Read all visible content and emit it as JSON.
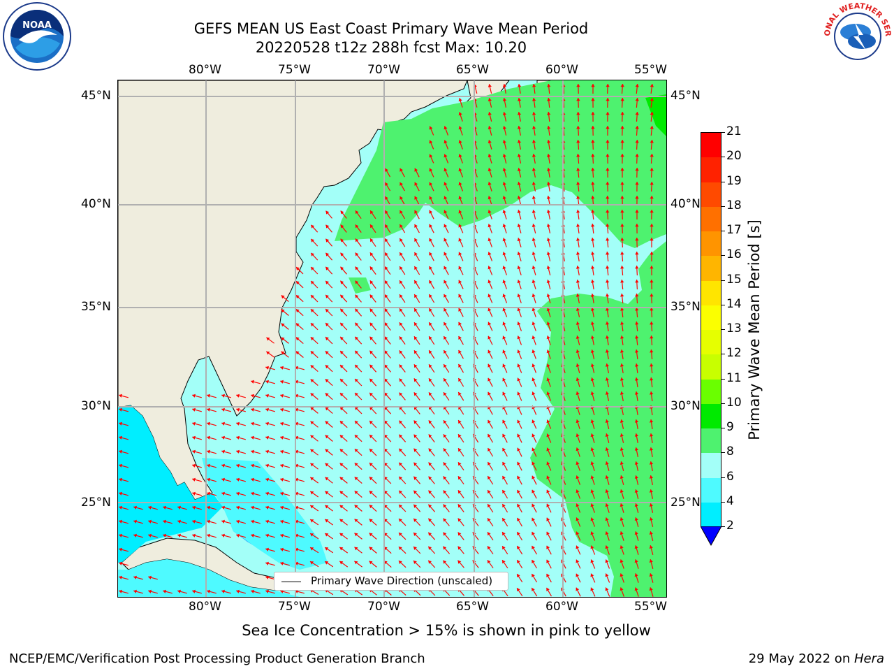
{
  "title": {
    "line1": "GEFS MEAN US East Coast Primary Wave Mean Period",
    "line2": "20220528 t12z 288h fcst   Max: 10.20"
  },
  "map": {
    "lon_labels": [
      "80°W",
      "75°W",
      "70°W",
      "65°W",
      "60°W",
      "55°W"
    ],
    "lat_labels": [
      "45°N",
      "40°N",
      "35°N",
      "30°N",
      "25°N"
    ],
    "legend_label": "Primary Wave Direction (unscaled)",
    "colors": {
      "land": "#efedde",
      "period_6_8": "#4efaff",
      "period_8_9": "#a3fff8",
      "period_9_10": "#4ef26f",
      "period_4_6": "#00eeff",
      "period_2_4": "#1a82ff",
      "arrow": "#ff0000",
      "grid": "#b0b0b0"
    }
  },
  "colorbar": {
    "label": "Primary Wave Mean Period [s]",
    "ticks": [
      "21",
      "20",
      "19",
      "18",
      "17",
      "16",
      "15",
      "14",
      "13",
      "12",
      "11",
      "10",
      "9",
      "8",
      "6",
      "4",
      "2"
    ],
    "colors": [
      "#ff0000",
      "#ff2200",
      "#ff4a00",
      "#ff7000",
      "#ff9400",
      "#ffb500",
      "#ffe500",
      "#fbff00",
      "#e6ff00",
      "#c8ff00",
      "#6aff00",
      "#00ea00",
      "#4ef26f",
      "#a3fff8",
      "#4efaff",
      "#00eeff",
      "#1a82ff"
    ],
    "under_color": "#0000ff"
  },
  "subtitle": "Sea Ice Concentration > 15% is shown in pink to yellow",
  "footer": {
    "left": "NCEP/EMC/Verification Post Processing Product Generation Branch",
    "right_date": "29 May 2022 on ",
    "right_host": "Hera"
  },
  "logos": {
    "noaa_text": "NOAA",
    "nws_text": "NATIONAL WEATHER SERVICE"
  }
}
